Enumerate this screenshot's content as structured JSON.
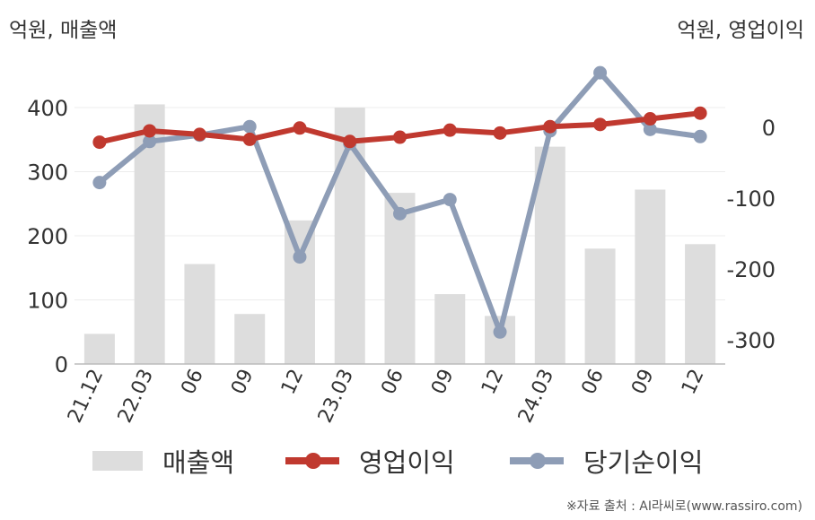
{
  "units": {
    "left": "억원, 매출액",
    "right": "억원, 영업이익"
  },
  "footer": "※자료 출처 : AI라씨로(www.rassiro.com)",
  "colors": {
    "revenue": "#dddddd",
    "operating_profit": "#c0392f",
    "net_income": "#8e9db6"
  },
  "chart_data": {
    "type": "bar",
    "categories": [
      "21.12",
      "22.03",
      "06",
      "09",
      "12",
      "23.03",
      "06",
      "09",
      "12",
      "24.03",
      "06",
      "09",
      "12"
    ],
    "series": [
      {
        "name": "매출액",
        "type": "bar",
        "axis": "left",
        "values": [
          47,
          405,
          156,
          78,
          224,
          400,
          267,
          109,
          75,
          339,
          180,
          272,
          187
        ]
      },
      {
        "name": "영업이익",
        "type": "line",
        "axis": "right",
        "values": [
          -21,
          -5,
          -10,
          -17,
          -1,
          -20,
          -14,
          -4,
          -8,
          1,
          4,
          12,
          20
        ]
      },
      {
        "name": "당기순이익",
        "type": "line",
        "axis": "right",
        "values": [
          -78,
          -20,
          -11,
          1,
          -183,
          -23,
          -122,
          -102,
          -289,
          -5,
          77,
          -3,
          -13
        ]
      }
    ],
    "y_left": {
      "ylim": [
        0,
        400
      ],
      "ticks": [
        0,
        100,
        200,
        300,
        400
      ]
    },
    "y_right": {
      "ticks": [
        0,
        -100,
        -200,
        -300
      ]
    },
    "legend": {
      "placement": "bottom",
      "items": [
        "매출액",
        "영업이익",
        "당기순이익"
      ]
    },
    "grid": true
  }
}
